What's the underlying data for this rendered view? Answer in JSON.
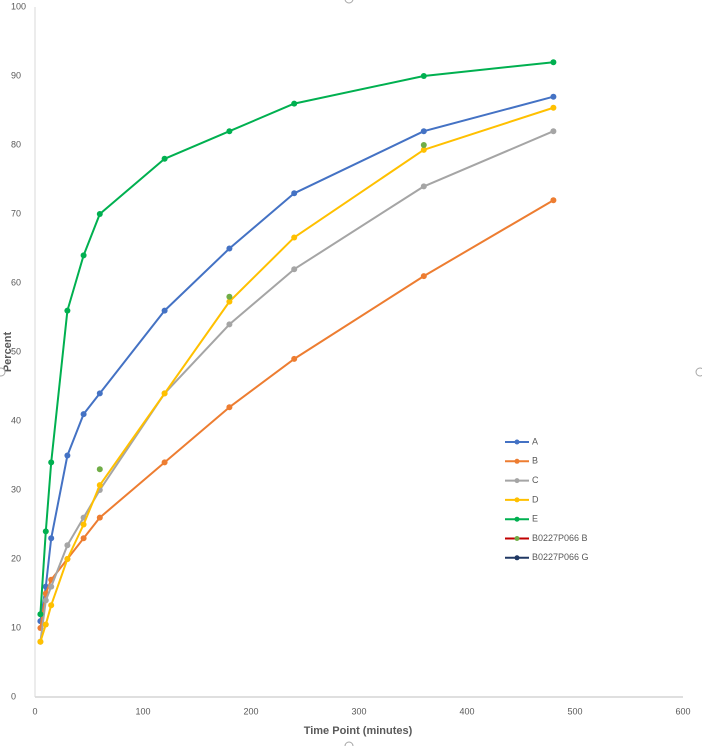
{
  "chart_data": {
    "type": "line",
    "x_label": "Time Point (minutes)",
    "y_label": "Percent",
    "x": [
      5,
      10,
      15,
      30,
      45,
      60,
      120,
      180,
      240,
      360,
      480
    ],
    "xlim": [
      0,
      600
    ],
    "xticks": [
      0,
      100,
      200,
      300,
      400,
      500,
      600
    ],
    "ylim": [
      0,
      100
    ],
    "yticks": [
      0,
      10,
      20,
      30,
      40,
      50,
      60,
      70,
      80,
      90,
      100
    ],
    "grid": false,
    "legend": "right",
    "series": [
      {
        "name": "A",
        "color": "#4472c4",
        "marker_color": "#4472c4",
        "values": [
          11,
          16,
          23,
          35,
          41,
          44,
          56,
          65,
          73,
          82,
          87
        ]
      },
      {
        "name": "B",
        "color": "#ed7d31",
        "marker_color": "#ed7d31",
        "values": [
          10,
          15,
          17,
          20,
          23,
          26,
          34,
          42,
          49,
          61,
          72
        ]
      },
      {
        "name": "C",
        "color": "#a5a5a5",
        "marker_color": "#a5a5a5",
        "values": [
          8,
          14,
          16,
          22,
          26,
          30,
          44,
          54,
          62,
          74,
          82
        ]
      },
      {
        "name": "D",
        "color": "#ffc000",
        "marker_color": "#ffc000",
        "values": [
          8,
          10.5,
          13.3,
          20,
          25,
          30.7,
          44,
          57.3,
          66.6,
          79.3,
          85.4
        ]
      },
      {
        "name": "E",
        "color": "#00b050",
        "marker_color": "#00b050",
        "values": [
          12,
          24,
          34,
          56,
          64,
          70,
          78,
          82,
          86,
          90,
          92
        ]
      },
      {
        "name": "B0227P066 B",
        "color": "#c00000",
        "marker_color": "#70ad47",
        "values": [
          null,
          null,
          null,
          null,
          null,
          33,
          null,
          58,
          null,
          80,
          null
        ]
      },
      {
        "name": "B0227P066 G",
        "color": "#203864",
        "marker_color": "#203864",
        "values": [
          null,
          null,
          null,
          null,
          null,
          null,
          null,
          null,
          null,
          null,
          null
        ]
      }
    ]
  }
}
